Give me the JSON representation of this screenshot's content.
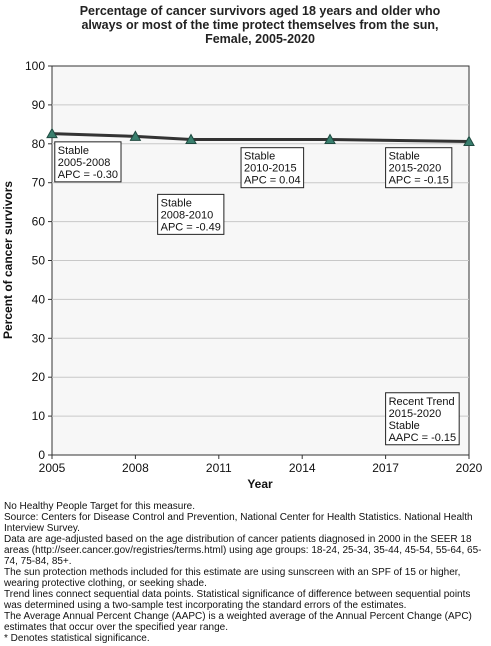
{
  "chart_data": {
    "type": "line",
    "title": [
      "Percentage of cancer survivors aged 18 years and older who",
      "always or most of the time protect themselves from the sun,",
      "Female,  2005-2020"
    ],
    "xlabel": "Year",
    "ylabel": "Percent of cancer survivors",
    "x_ticks": [
      "2005",
      "2008",
      "2011",
      "2014",
      "2017",
      "2020"
    ],
    "y_ticks": [
      "0",
      "10",
      "20",
      "30",
      "40",
      "50",
      "60",
      "70",
      "80",
      "90",
      "100"
    ],
    "xlim": [
      2005,
      2020
    ],
    "ylim": [
      0,
      100
    ],
    "grid": true,
    "series": [
      {
        "x": [
          2005,
          2008,
          2010,
          2015,
          2020
        ],
        "y": [
          82.6,
          81.9,
          81.1,
          81.1,
          80.6
        ],
        "color": "#3a7f6e"
      }
    ],
    "trend_line_color": "#333333",
    "annotations": [
      {
        "lines": [
          "Stable",
          "2005-2008",
          "APC = -0.30"
        ],
        "anchor_x": 2005.1,
        "anchor_y": 80.5
      },
      {
        "lines": [
          "Stable",
          "2008-2010",
          "APC = -0.49"
        ],
        "anchor_x": 2008.8,
        "anchor_y": 67
      },
      {
        "lines": [
          "Stable",
          "2010-2015",
          "APC =  0.04"
        ],
        "anchor_x": 2011.8,
        "anchor_y": 79
      },
      {
        "lines": [
          "Stable",
          "2015-2020",
          "APC = -0.15"
        ],
        "anchor_x": 2017.0,
        "anchor_y": 79
      },
      {
        "lines": [
          "Recent Trend",
          "2015-2020",
          "Stable",
          "AAPC = -0.15"
        ],
        "anchor_x": 2017.0,
        "anchor_y": 16
      }
    ]
  },
  "notes": [
    "No Healthy People Target for this measure.",
    "Source: Centers for Disease Control and Prevention, National Center for Health Statistics. National Health Interview Survey.",
    "Data are age-adjusted based on the age distribution of cancer patients diagnosed in 2000 in the SEER 18 areas (http://seer.cancer.gov/registries/terms.html) using age groups: 18-24, 25-34, 35-44, 45-54, 55-64, 65-74, 75-84, 85+.",
    "The sun protection methods included for this estimate are using sunscreen with an SPF of 15 or higher, wearing protective clothing, or seeking shade.",
    "Trend lines connect sequential data points. Statistical significance of difference between sequential points was determined using a two-sample test incorporating the standard errors of the estimates.",
    "The Average Annual Percent Change (AAPC) is a weighted average of the Annual Percent Change (APC) estimates that occur over the specified year range.",
    "* Denotes statistical significance."
  ]
}
